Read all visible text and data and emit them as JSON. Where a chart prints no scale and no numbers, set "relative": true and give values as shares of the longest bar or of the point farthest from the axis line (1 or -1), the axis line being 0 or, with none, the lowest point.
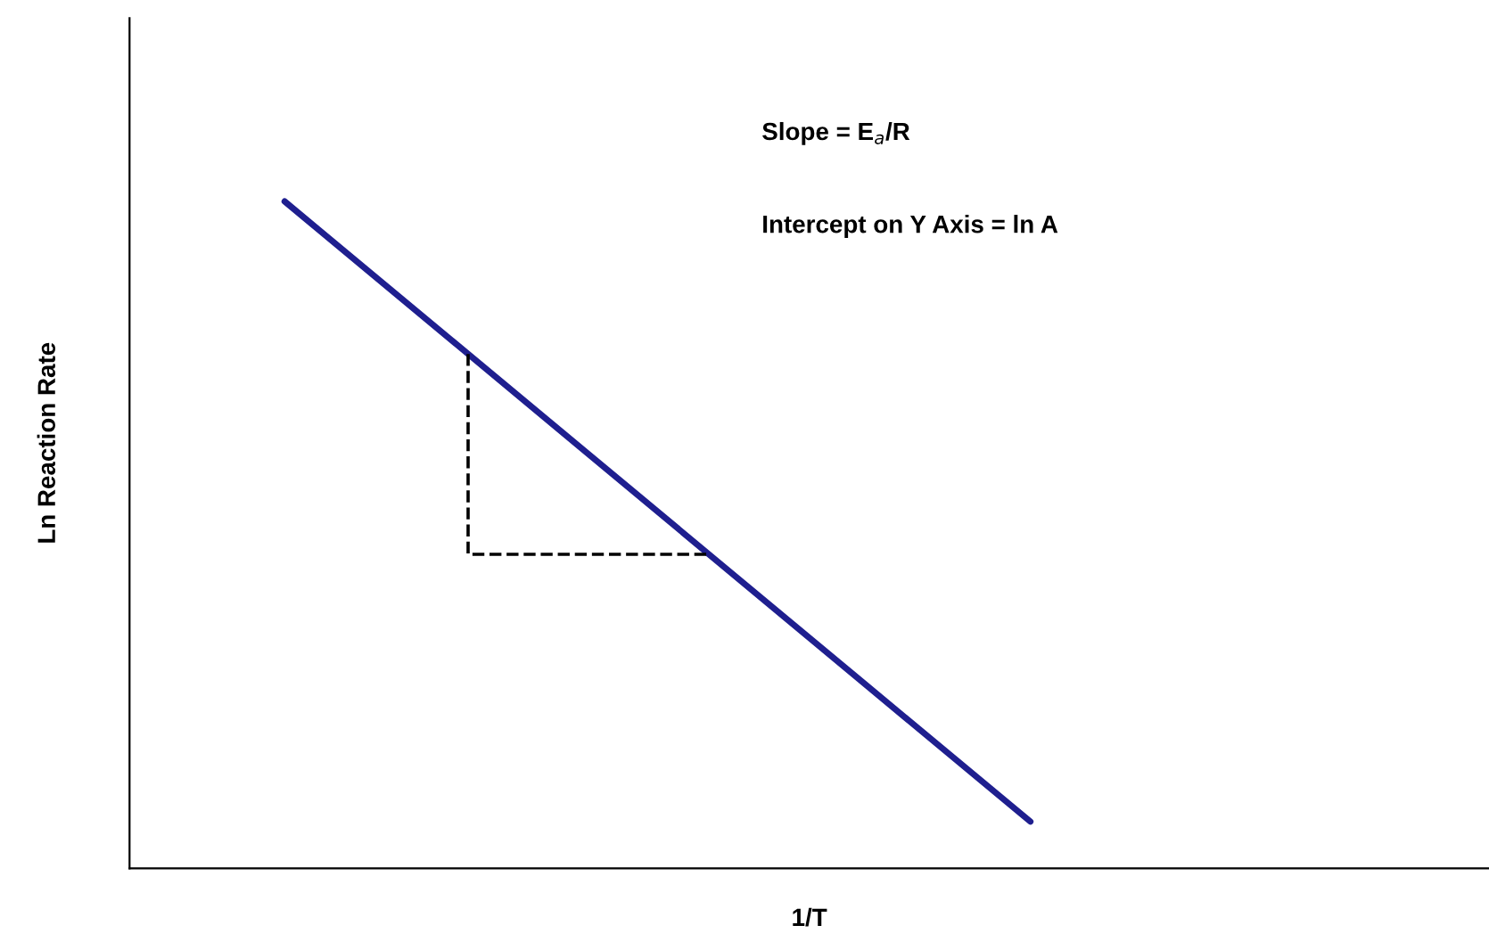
{
  "chart_data": {
    "type": "line",
    "relative": true,
    "xlabel": "1/T",
    "ylabel": "Ln Reaction Rate",
    "categories": [
      null,
      null
    ],
    "series": [
      {
        "color": "#1f1f8f",
        "values": [
          1,
          0.07
        ]
      }
    ],
    "annotations": [
      "Slope = E$_{a}$/R",
      "Intercept on Y Axis = ln A"
    ],
    "tick_labels": false
  }
}
